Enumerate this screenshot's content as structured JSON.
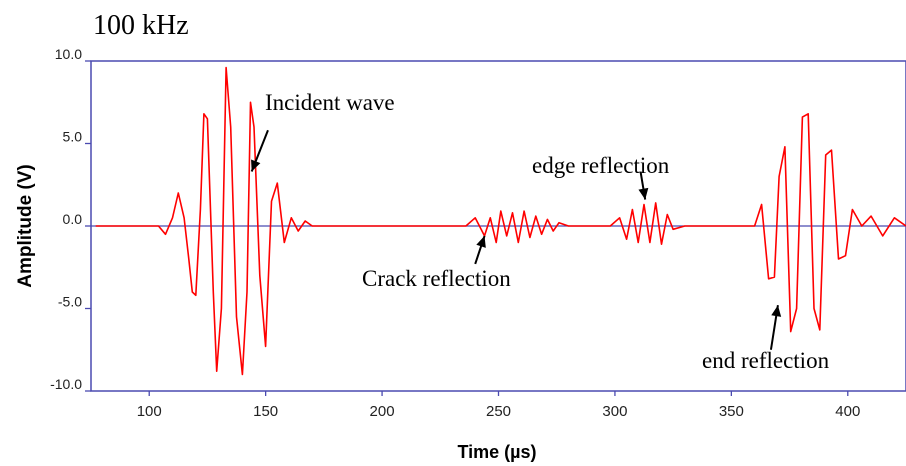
{
  "chart_data": {
    "type": "line",
    "title": "100 kHz",
    "xlabel": "Time (µs)",
    "ylabel": "Amplitude (V)",
    "xlim": [
      75,
      425
    ],
    "ylim": [
      -10,
      10
    ],
    "xticks": [
      "100",
      "150",
      "200",
      "250",
      "300",
      "350",
      "400"
    ],
    "yticks": [
      "10.0",
      "5.0",
      "0.0",
      "-5.0",
      "-10.0"
    ],
    "grid": false,
    "colors": {
      "signal": "#ff0000",
      "axes": "#4a4ab0",
      "zero_line": "#4a4ab0",
      "annotation": "#000000"
    },
    "series": [
      {
        "name": "",
        "x": [
          77,
          90,
          100,
          104,
          107,
          110,
          112.5,
          115,
          117,
          118.5,
          120,
          122,
          123.5,
          125,
          127.5,
          129,
          131,
          133,
          135,
          137.5,
          140,
          142,
          143.5,
          145,
          147.5,
          150,
          152.5,
          155,
          158,
          161,
          164,
          167,
          170,
          175,
          180,
          190,
          200,
          210,
          220,
          230,
          236,
          240,
          244,
          246.5,
          249,
          251,
          253.5,
          256,
          258.5,
          261,
          263.5,
          266,
          268.5,
          271,
          273.5,
          276,
          280,
          288,
          298,
          302,
          305,
          307.5,
          310,
          312.5,
          315,
          317.5,
          320,
          322.5,
          325,
          330,
          340,
          350,
          356,
          360,
          363,
          366,
          368.5,
          370.5,
          373,
          375.5,
          378,
          380.5,
          383,
          385.5,
          388,
          390.5,
          393,
          396,
          399,
          402,
          406,
          410,
          415,
          420,
          425
        ],
        "values": [
          0,
          0,
          0,
          0,
          -0.5,
          0.5,
          2,
          0.5,
          -2,
          -4,
          -4.2,
          1,
          6.8,
          6.5,
          -4,
          -8.8,
          -5,
          9.6,
          6,
          -5.5,
          -9,
          -4,
          7.5,
          6,
          -3,
          -7.3,
          1.5,
          2.6,
          -1,
          0.5,
          -0.3,
          0.3,
          0,
          0,
          0,
          0,
          0,
          0,
          0,
          0,
          0,
          0.5,
          -0.6,
          0.5,
          -1,
          0.9,
          -0.6,
          0.8,
          -1,
          0.9,
          -0.7,
          0.6,
          -0.5,
          0.4,
          -0.3,
          0.2,
          0,
          0,
          0,
          0.5,
          -0.8,
          1,
          -1,
          1.3,
          -1,
          1.4,
          -1.1,
          0.7,
          -0.2,
          0,
          0,
          0,
          0,
          0,
          1.3,
          -3.2,
          -3.1,
          3,
          4.8,
          -6.4,
          -5,
          6.6,
          6.8,
          -5,
          -6.3,
          4.3,
          4.6,
          -2,
          -1.8,
          1,
          0,
          0.6,
          -0.6,
          0.5,
          0
        ]
      }
    ],
    "annotations": [
      {
        "text": "Incident wave",
        "x": 144,
        "y": 3.3,
        "arrow_from_x": 151,
        "arrow_from_y": 5.8
      },
      {
        "text": "edge reflection",
        "x": 313,
        "y": 1.6,
        "arrow_from_x": 311,
        "arrow_from_y": 3.3
      },
      {
        "text": "Crack reflection",
        "x": 244,
        "y": -0.6,
        "arrow_from_x": 240,
        "arrow_from_y": -2.3
      },
      {
        "text": "end reflection",
        "x": 370,
        "y": -4.8,
        "arrow_from_x": 367,
        "arrow_from_y": -7.5
      }
    ]
  }
}
